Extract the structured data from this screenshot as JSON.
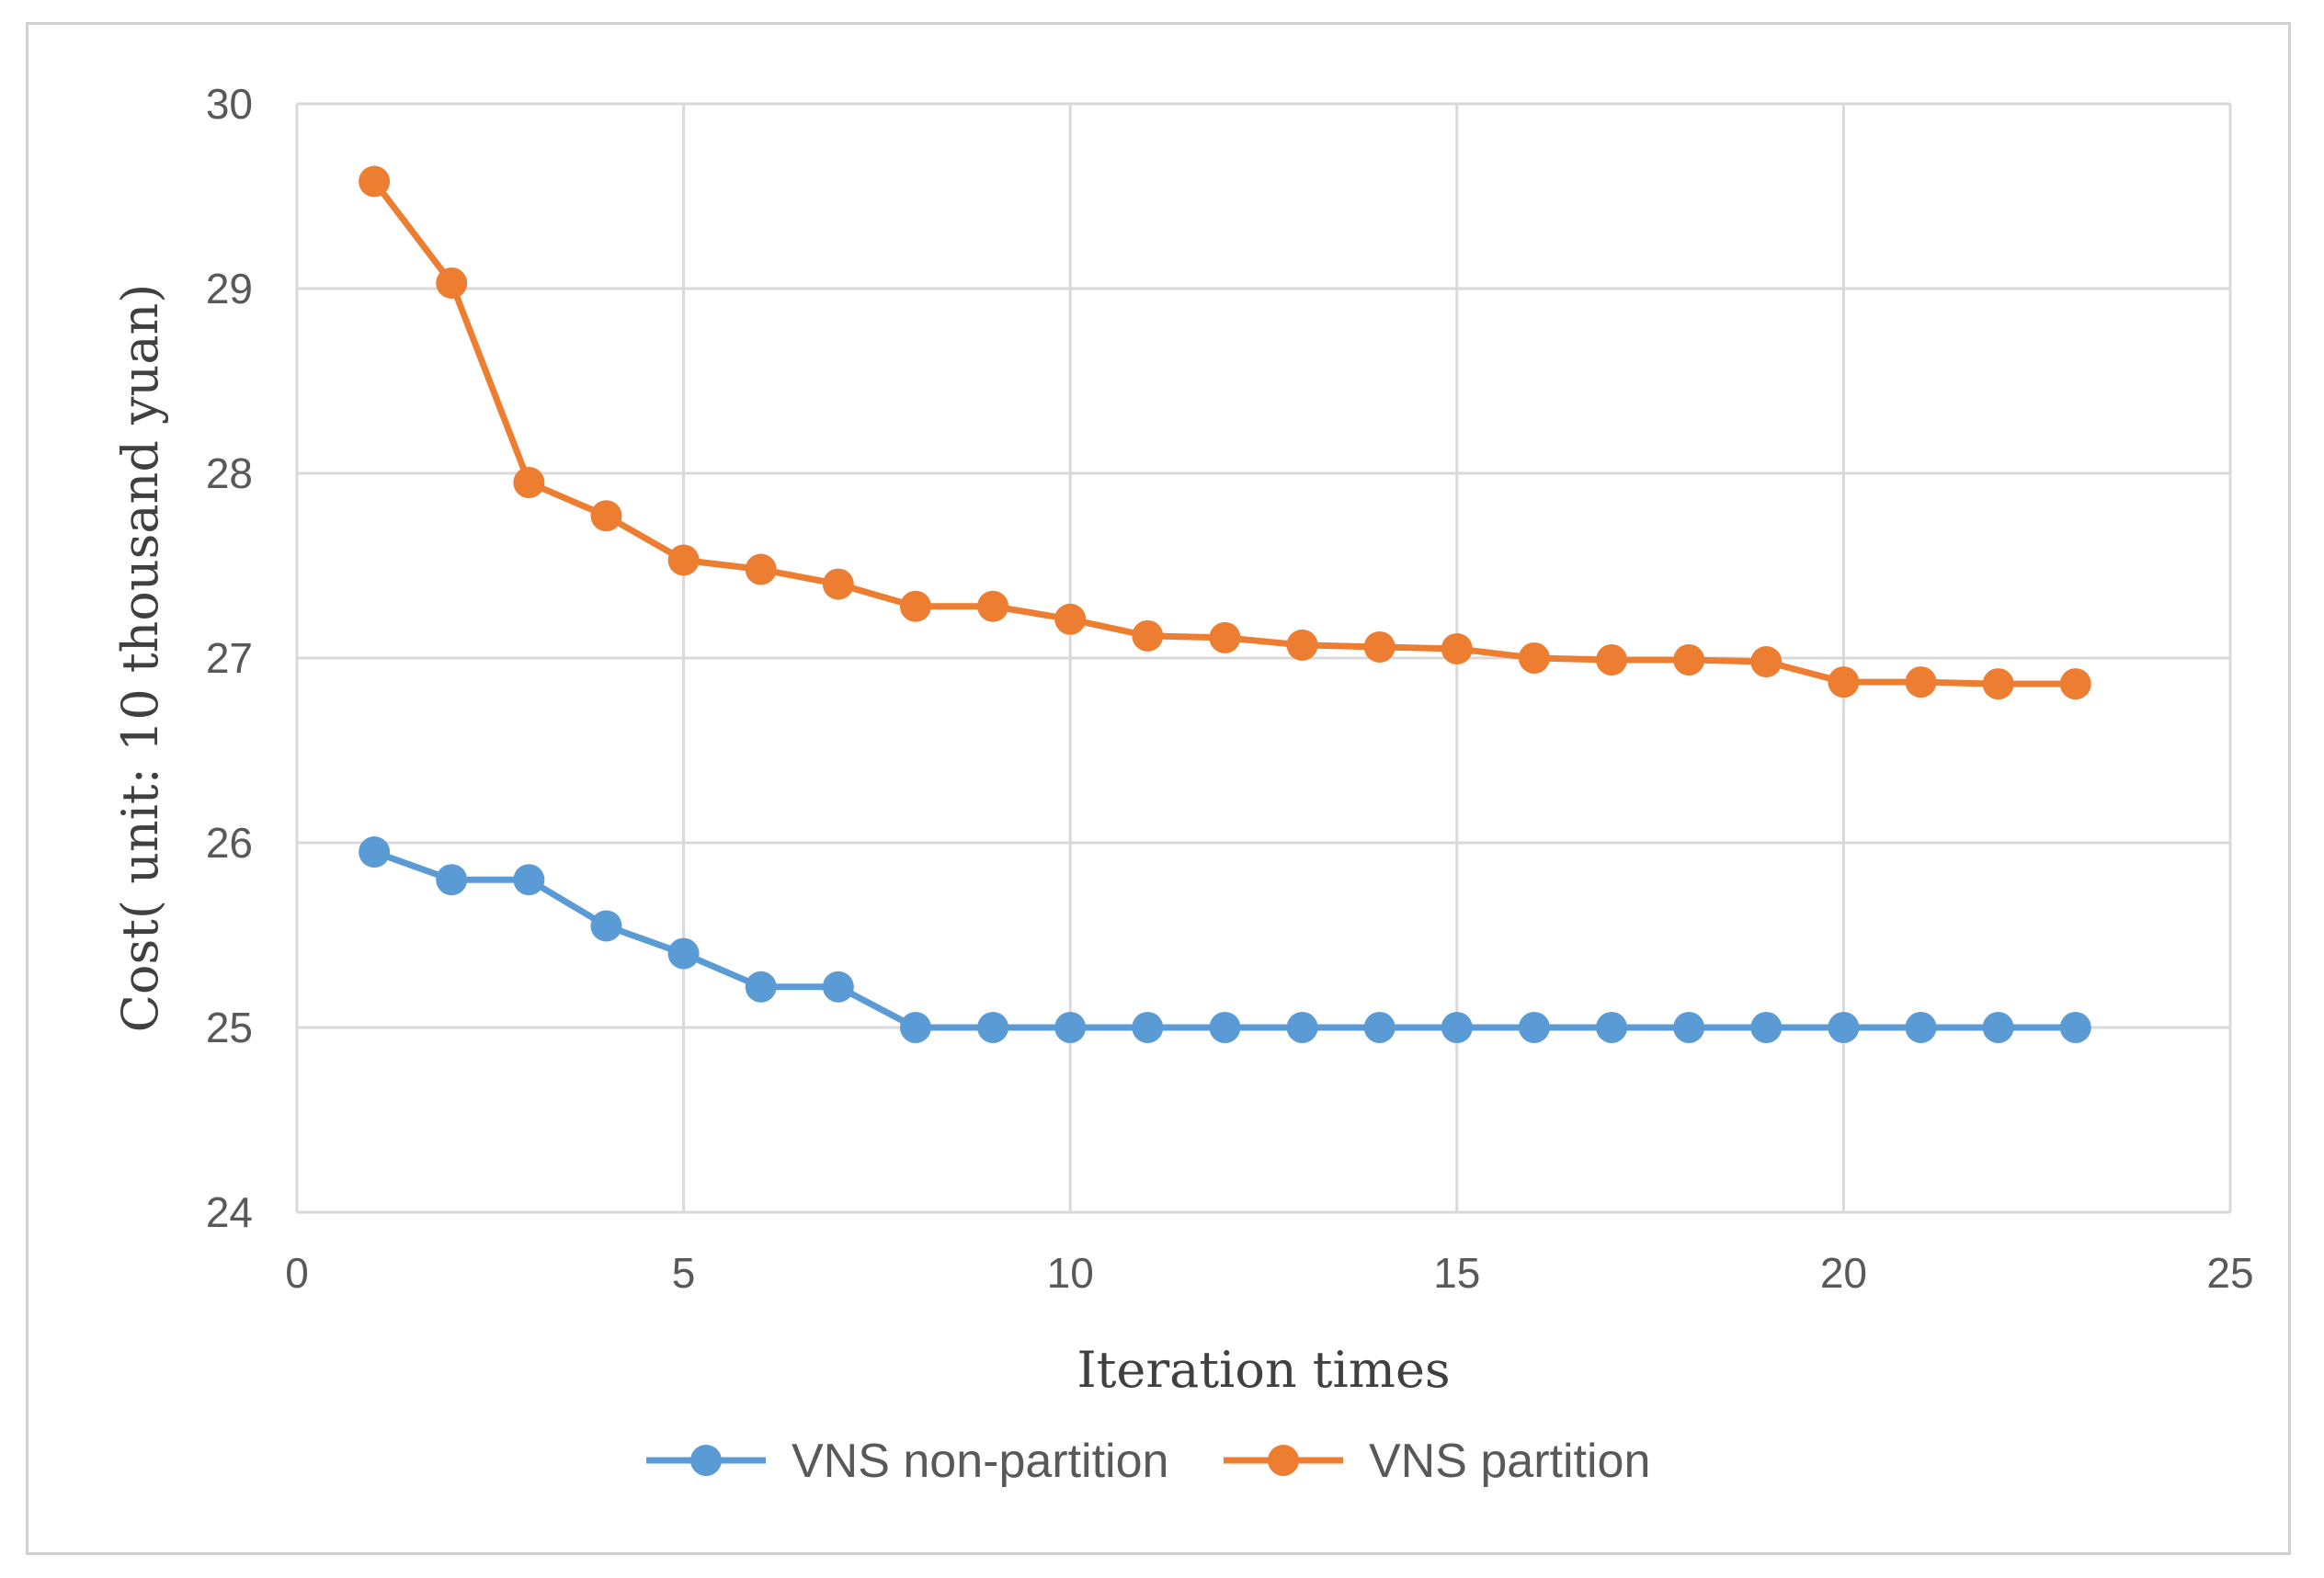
{
  "chart_data": {
    "type": "line",
    "title": "",
    "xlabel": "Iteration times",
    "ylabel": "Cost( unit: 10 thousand yuan)",
    "xlim": [
      0,
      25
    ],
    "ylim": [
      24,
      30
    ],
    "x_ticks": [
      0,
      5,
      10,
      15,
      20,
      25
    ],
    "y_ticks": [
      24,
      25,
      26,
      27,
      28,
      29,
      30
    ],
    "x_tick_labels": [
      "0",
      "5",
      "10",
      "15",
      "20",
      "25"
    ],
    "y_tick_labels": [
      "24",
      "25",
      "26",
      "27",
      "28",
      "29",
      "30"
    ],
    "grid": true,
    "legend_position": "bottom",
    "x": [
      1,
      2,
      3,
      4,
      5,
      6,
      7,
      8,
      9,
      10,
      11,
      12,
      13,
      14,
      15,
      16,
      17,
      18,
      19,
      20,
      21,
      22,
      23
    ],
    "series": [
      {
        "name": "VNS non-partition",
        "color": "#5b9bd5",
        "values": [
          25.95,
          25.8,
          25.8,
          25.55,
          25.4,
          25.22,
          25.22,
          25.0,
          25.0,
          25.0,
          25.0,
          25.0,
          25.0,
          25.0,
          25.0,
          25.0,
          25.0,
          25.0,
          25.0,
          25.0,
          25.0,
          25.0,
          25.0
        ]
      },
      {
        "name": "VNS partition",
        "color": "#ed7d31",
        "values": [
          29.58,
          29.03,
          27.95,
          27.77,
          27.53,
          27.48,
          27.4,
          27.28,
          27.28,
          27.21,
          27.12,
          27.11,
          27.07,
          27.06,
          27.05,
          27.0,
          26.99,
          26.99,
          26.98,
          26.87,
          26.87,
          26.86,
          26.86
        ]
      }
    ]
  }
}
